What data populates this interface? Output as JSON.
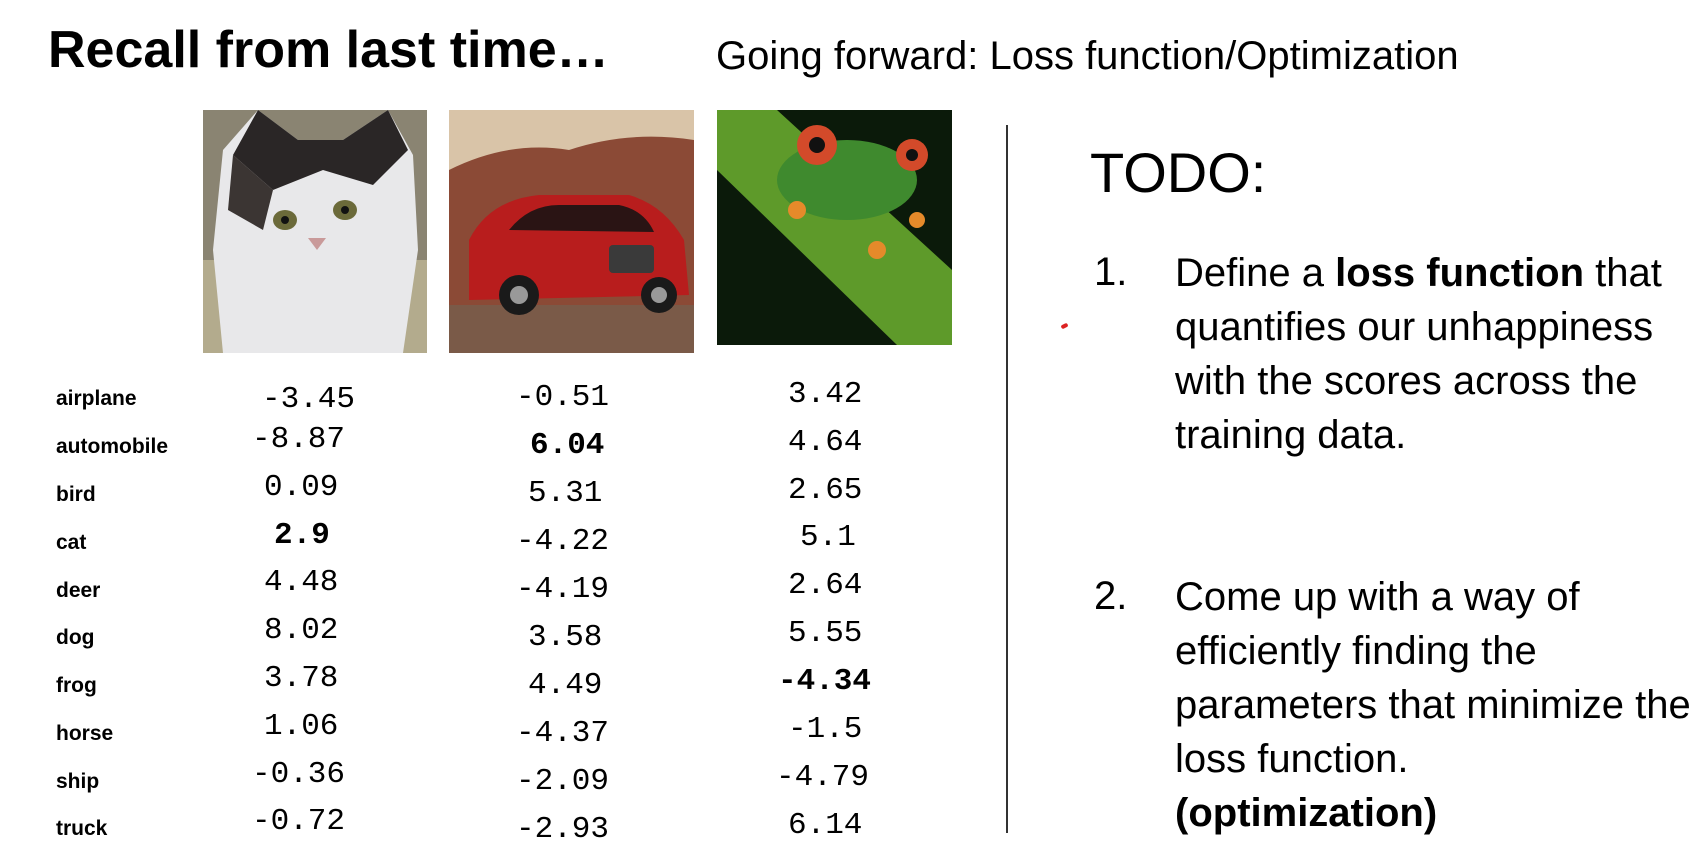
{
  "slide": {
    "title": "Recall from last time…",
    "subtitle": "Going forward: Loss function/Optimization"
  },
  "images": [
    {
      "subject": "cat"
    },
    {
      "subject": "car"
    },
    {
      "subject": "frog"
    }
  ],
  "classes": [
    "airplane",
    "automobile",
    "bird",
    "cat",
    "deer",
    "dog",
    "frog",
    "horse",
    "ship",
    "truck"
  ],
  "scores": {
    "cat_image": [
      "-3.45",
      "-8.87",
      "0.09",
      "2.9",
      "4.48",
      "8.02",
      "3.78",
      "1.06",
      "-0.36",
      "-0.72"
    ],
    "car_image": [
      "-0.51",
      "6.04",
      "5.31",
      "-4.22",
      "-4.19",
      "3.58",
      "4.49",
      "-4.37",
      "-2.09",
      "-2.93"
    ],
    "frog_image": [
      "3.42",
      "4.64",
      "2.65",
      "5.1",
      "2.64",
      "5.55",
      "-4.34",
      "-1.5",
      "-4.79",
      "6.14"
    ]
  },
  "todo": {
    "heading": "TODO:",
    "items": [
      {
        "number": "1.",
        "before": "Define a ",
        "bold": "loss function",
        "after": " that quantifies our unhappiness with the scores across the training data."
      },
      {
        "number": "2.",
        "text": "Come up with a way of efficiently finding the parameters that minimize the loss function.",
        "bold": "(optimization)"
      }
    ]
  }
}
